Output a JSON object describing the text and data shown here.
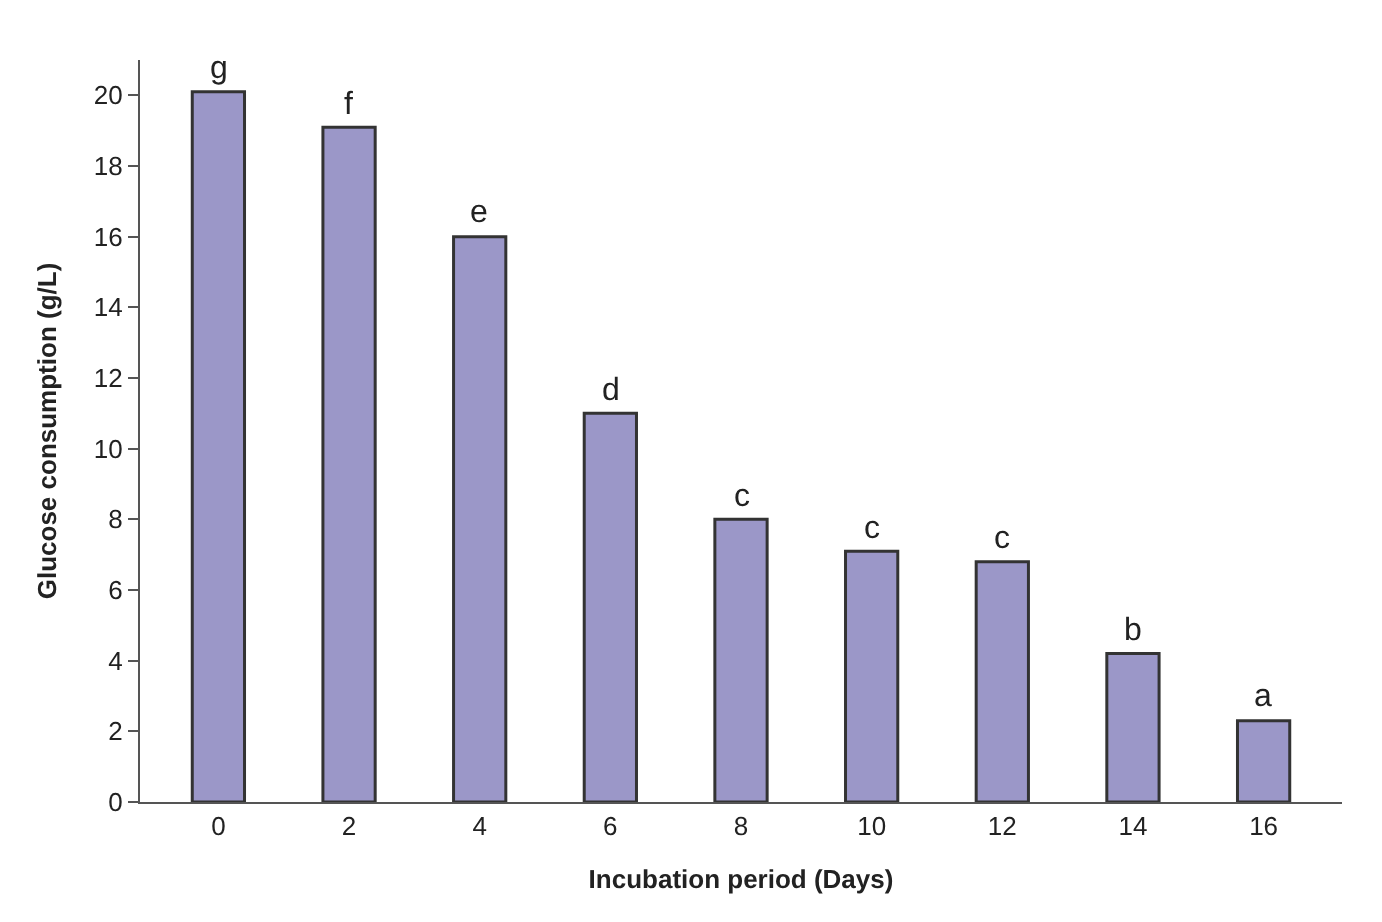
{
  "chart_data": {
    "type": "bar",
    "xlabel": "Incubation period (Days)",
    "ylabel": "Glucose consumption (g/L)",
    "categories": [
      "0",
      "2",
      "4",
      "6",
      "8",
      "10",
      "12",
      "14",
      "16"
    ],
    "values": [
      20.1,
      19.1,
      16.0,
      11.0,
      8.0,
      7.1,
      6.8,
      4.2,
      2.3
    ],
    "color": "#9b97c8",
    "ylim": [
      0,
      21
    ],
    "yticks": [
      0,
      2,
      4,
      6,
      8,
      10,
      12,
      14,
      16,
      18,
      20
    ],
    "annotations": [
      {
        "text": "g",
        "x": "0",
        "y": 20.1
      },
      {
        "text": "f",
        "x": "2",
        "y": 19.1
      },
      {
        "text": "e",
        "x": "4",
        "y": 16.0
      },
      {
        "text": "d",
        "x": "6",
        "y": 11.0
      },
      {
        "text": "c",
        "x": "8",
        "y": 8.0
      },
      {
        "text": "c",
        "x": "10",
        "y": 7.1
      },
      {
        "text": "c",
        "x": "12",
        "y": 6.8
      },
      {
        "text": "b",
        "x": "14",
        "y": 4.2
      },
      {
        "text": "a",
        "x": "16",
        "y": 2.3
      }
    ]
  }
}
